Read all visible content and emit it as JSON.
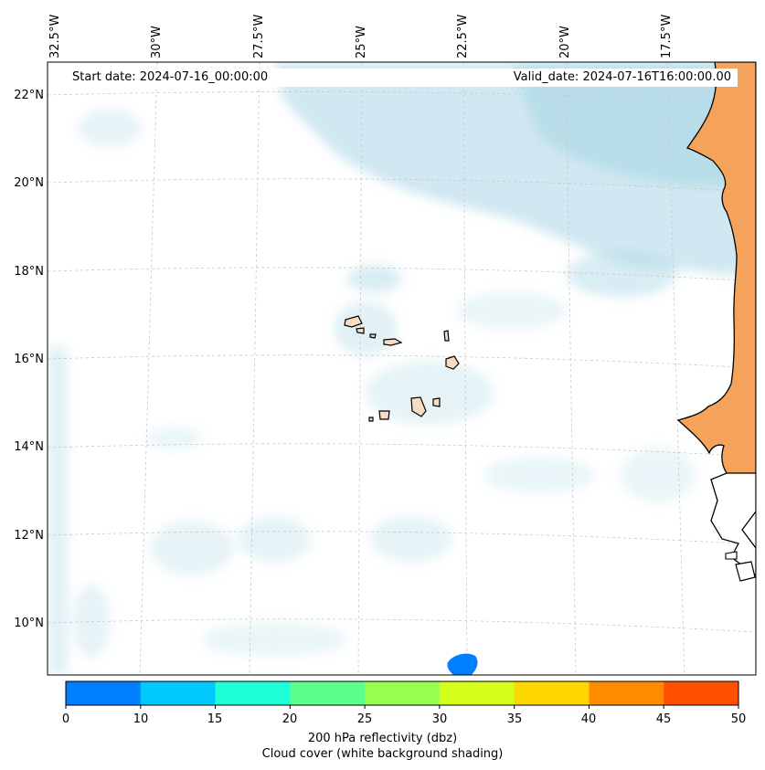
{
  "header": {
    "start_date": "Start date: 2024-07-16_00:00:00",
    "valid_date": "Valid_date: 2024-07-16T16:00:00.00"
  },
  "map": {
    "lon_labels": [
      "32.5°W",
      "30°W",
      "27.5°W",
      "25°W",
      "22.5°W",
      "20°W",
      "17.5°W"
    ],
    "lat_labels": [
      "22°N",
      "20°N",
      "18°N",
      "16°N",
      "14°N",
      "12°N",
      "10°N"
    ],
    "gridlines": true,
    "land_color": "#f5a35a",
    "cloud_color": "#a9d6e5",
    "coast_color": "#000000"
  },
  "colorbar": {
    "ticks": [
      "0",
      "10",
      "15",
      "20",
      "25",
      "30",
      "35",
      "40",
      "45",
      "50"
    ],
    "colors": [
      "#0080ff",
      "#00c8ff",
      "#1effd8",
      "#5cff8c",
      "#98ff52",
      "#d4ff1a",
      "#ffd700",
      "#ff8c00",
      "#ff4f00"
    ],
    "label_line1": "200 hPa reflectivity (dbz)",
    "label_line2": "Cloud cover (white background shading)"
  },
  "chart_data": {
    "type": "heatmap",
    "variable": "200 hPa reflectivity (dbz)",
    "secondary_variable": "Cloud cover (white background shading)",
    "color_levels": [
      0,
      10,
      15,
      20,
      25,
      30,
      35,
      40,
      45,
      50
    ],
    "lon_ticks": [
      -32.5,
      -30,
      -27.5,
      -25,
      -22.5,
      -20,
      -17.5
    ],
    "lat_ticks": [
      22,
      20,
      18,
      16,
      14,
      12,
      10
    ],
    "lon_range": [
      -33,
      -15.6
    ],
    "lat_range": [
      9,
      22.8
    ]
  }
}
